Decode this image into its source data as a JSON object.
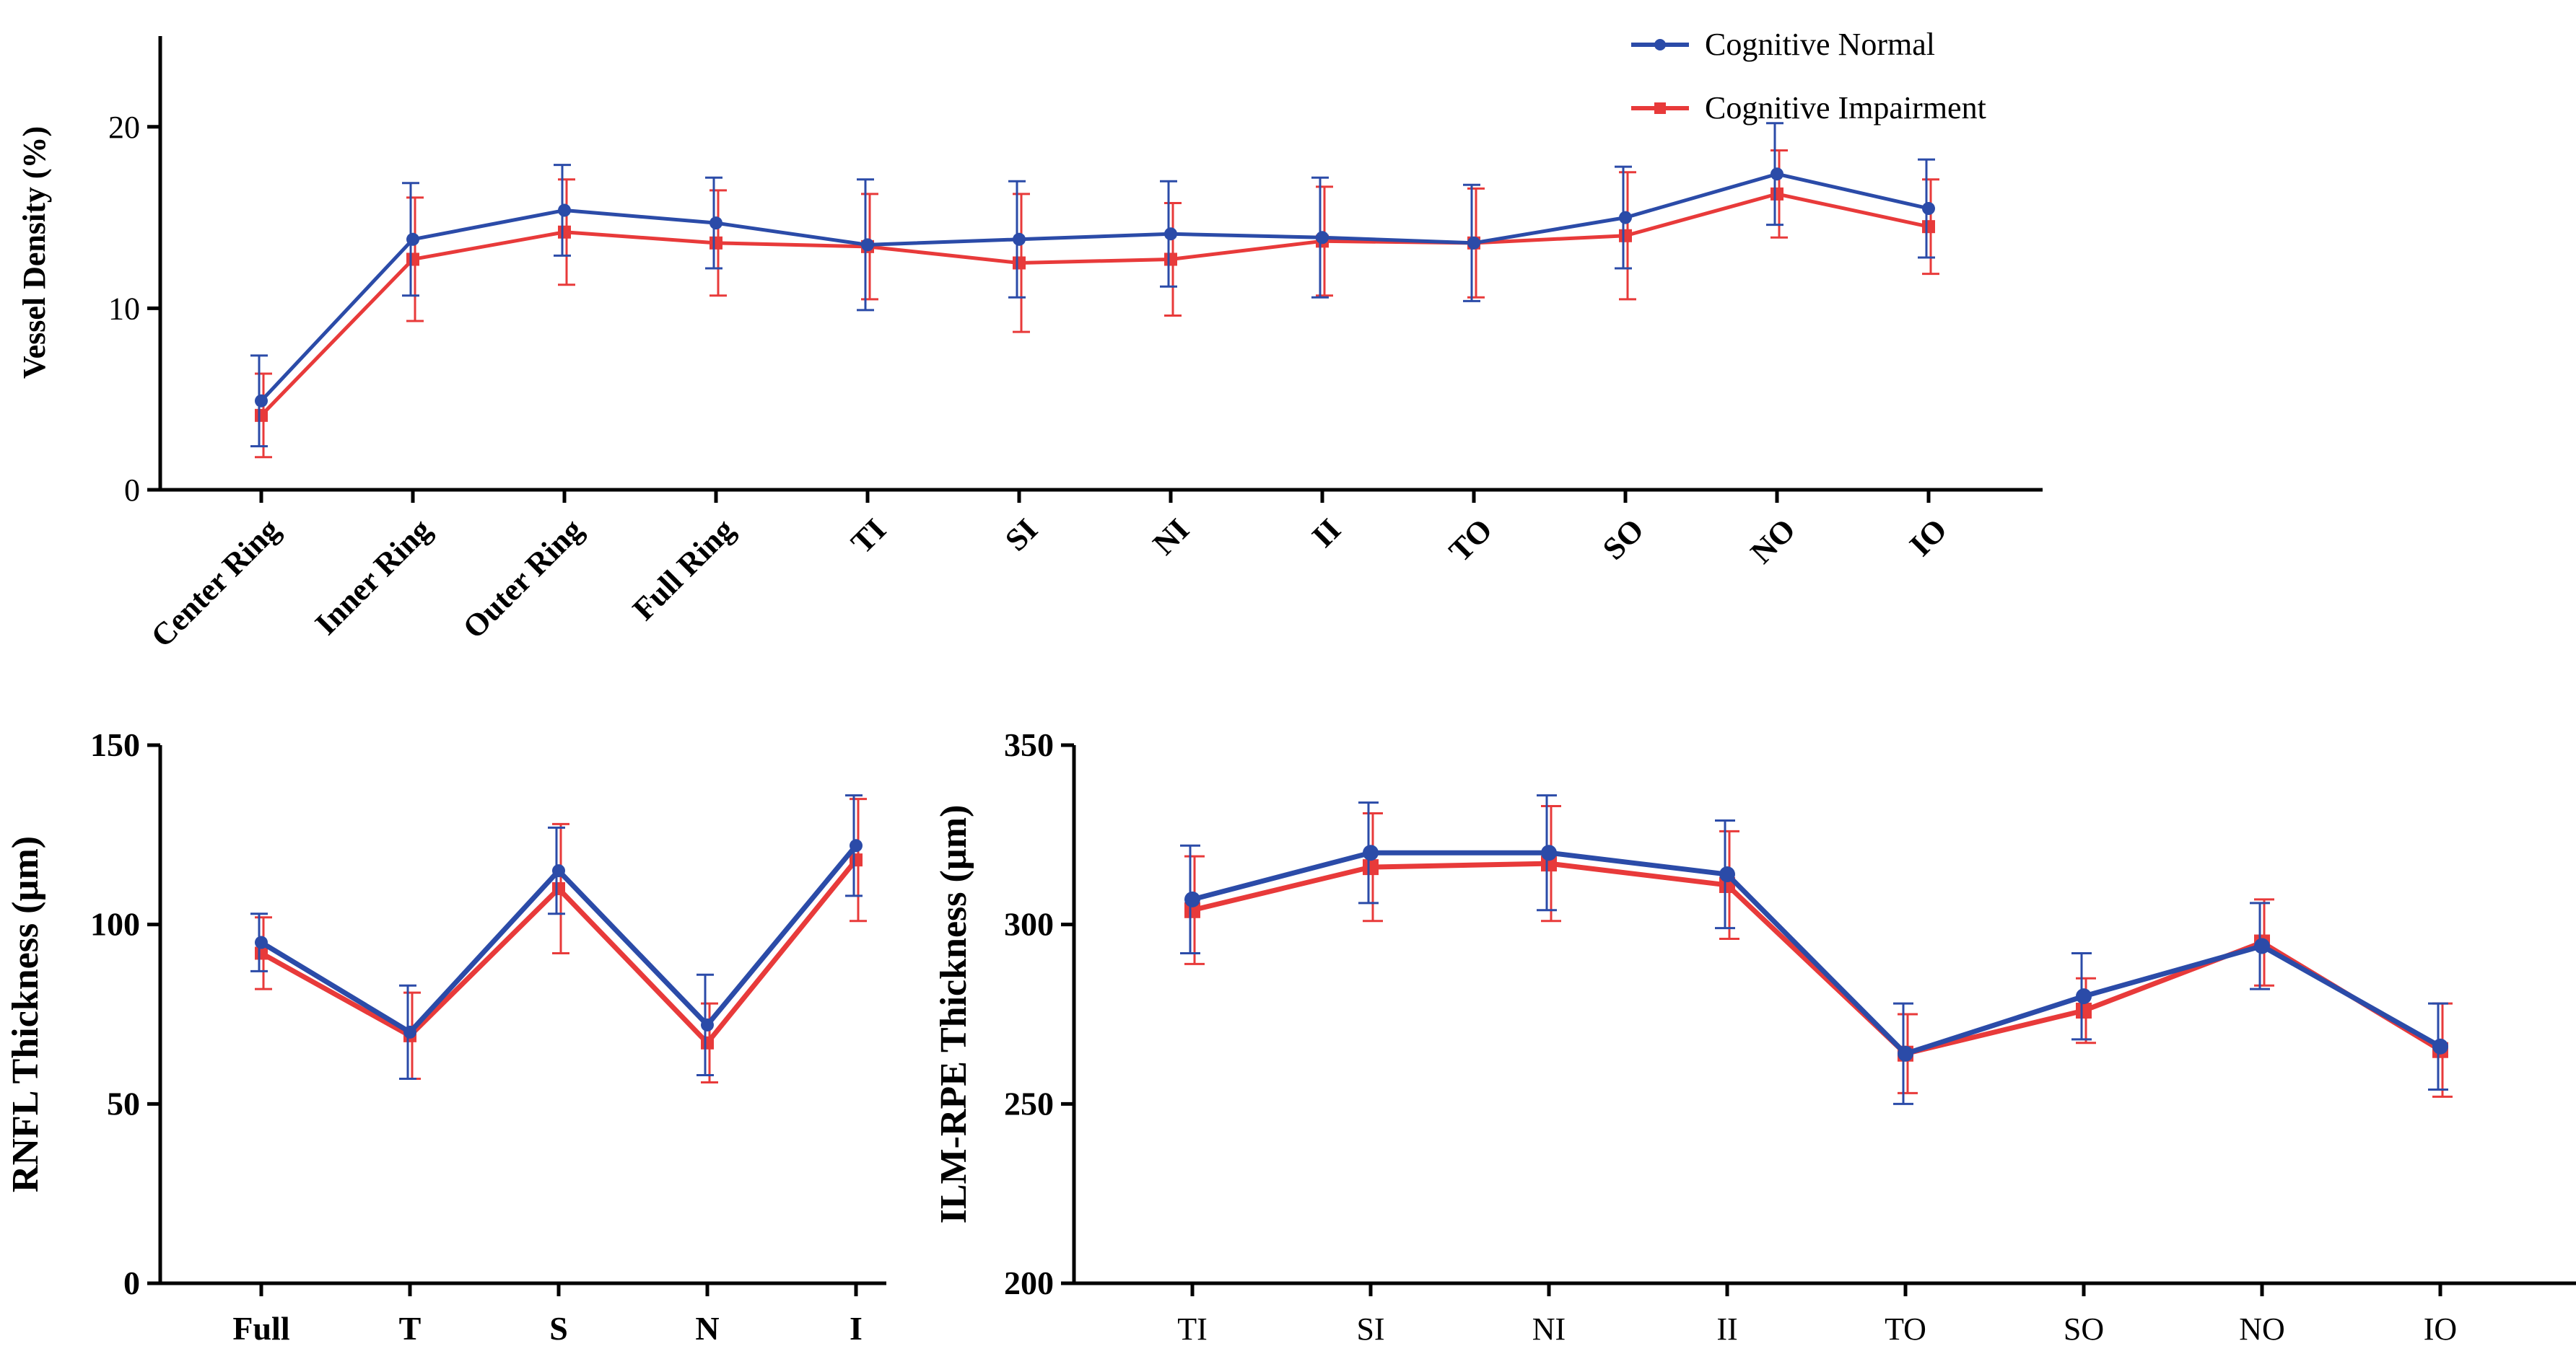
{
  "legend": {
    "normal_label": "Cognitive Normal",
    "impaired_label": "Cognitive Impairment"
  },
  "colors": {
    "normal": "#2b4ba8",
    "impaired": "#e83a3a",
    "axis": "#000000"
  },
  "chart_data": [
    {
      "id": "vessel-density",
      "type": "line",
      "title": "",
      "xlabel": "",
      "ylabel": "Vessel Density (%)",
      "ylim": [
        0,
        25
      ],
      "yticks": [
        0,
        10,
        20
      ],
      "categories": [
        "Center Ring",
        "Inner Ring",
        "Outer Ring",
        "Full Ring",
        "TI",
        "SI",
        "NI",
        "II",
        "TO",
        "SO",
        "NO",
        "IO"
      ],
      "tick_rotation": -45,
      "bold_ticks": true,
      "legend_position": "top-right",
      "series": [
        {
          "name": "Cognitive Normal",
          "values": [
            4.9,
            13.8,
            15.4,
            14.7,
            13.5,
            13.8,
            14.1,
            13.9,
            13.6,
            15.0,
            17.4,
            15.5
          ],
          "err": [
            2.5,
            3.1,
            2.5,
            2.5,
            3.6,
            3.2,
            2.9,
            3.3,
            3.2,
            2.8,
            2.8,
            2.7
          ]
        },
        {
          "name": "Cognitive Impairment",
          "values": [
            4.1,
            12.7,
            14.2,
            13.6,
            13.4,
            12.5,
            12.7,
            13.7,
            13.6,
            14.0,
            16.3,
            14.5
          ],
          "err": [
            2.3,
            3.4,
            2.9,
            2.9,
            2.9,
            3.8,
            3.1,
            3.0,
            3.0,
            3.5,
            2.4,
            2.6
          ]
        }
      ]
    },
    {
      "id": "rnfl-thickness",
      "type": "line",
      "title": "",
      "xlabel": "",
      "ylabel": "RNFL Thickness (µm)",
      "ylim": [
        0,
        150
      ],
      "yticks": [
        0,
        50,
        100,
        150
      ],
      "categories": [
        "Full",
        "T",
        "S",
        "N",
        "I"
      ],
      "tick_rotation": 0,
      "bold_ticks": true,
      "series": [
        {
          "name": "Cognitive Normal",
          "values": [
            95,
            70,
            115,
            72,
            122
          ],
          "err": [
            8,
            13,
            12,
            14,
            14
          ]
        },
        {
          "name": "Cognitive Impairment",
          "values": [
            92,
            69,
            110,
            67,
            118
          ],
          "err": [
            10,
            12,
            18,
            11,
            17
          ]
        }
      ]
    },
    {
      "id": "ilm-rpe-thickness",
      "type": "line",
      "title": "",
      "xlabel": "",
      "ylabel": "ILM-RPE Thickness (µm)",
      "ylim": [
        200,
        350
      ],
      "yticks": [
        200,
        250,
        300,
        350
      ],
      "categories": [
        "TI",
        "SI",
        "NI",
        "II",
        "TO",
        "SO",
        "NO",
        "IO"
      ],
      "tick_rotation": 0,
      "bold_ticks": false,
      "series": [
        {
          "name": "Cognitive Normal",
          "values": [
            307,
            320,
            320,
            314,
            264,
            280,
            294,
            266
          ],
          "err": [
            15,
            14,
            16,
            15,
            14,
            12,
            12,
            12
          ]
        },
        {
          "name": "Cognitive Impairment",
          "values": [
            304,
            316,
            317,
            311,
            264,
            276,
            295,
            265
          ],
          "err": [
            15,
            15,
            16,
            15,
            11,
            9,
            12,
            13
          ]
        }
      ]
    }
  ]
}
